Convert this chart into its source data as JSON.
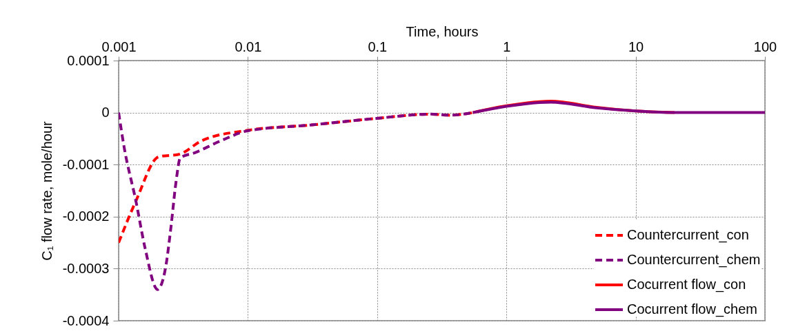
{
  "chart_data": {
    "type": "line",
    "xlabel": "Time, hours",
    "ylabel": "C₁ flow rate, mole/hour",
    "log": "x",
    "grid": true,
    "legend": "bottom right",
    "xlim": [
      0.001,
      100
    ],
    "xticks": [
      0.001,
      0.01,
      0.1,
      1,
      10,
      100
    ],
    "ylim": [
      -0.0004,
      0.0001
    ],
    "yticks": [
      0.0001,
      0,
      -0.0001,
      -0.0002,
      -0.0003,
      -0.0004
    ],
    "series": [
      {
        "name": "Countercurrent_con",
        "color": "#ff0000",
        "line_style": "dashed",
        "x": [
          0.001,
          0.00136,
          0.00204,
          0.00295,
          0.0044,
          0.01,
          0.0303,
          0.1,
          0.26,
          0.37,
          0.55
        ],
        "values": [
          -0.00025,
          -0.00017,
          -8.5e-05,
          -8e-05,
          -5.4e-05,
          -3.4e-05,
          -2.4e-05,
          -1.1e-05,
          -3e-06,
          -5e-06,
          0
        ]
      },
      {
        "name": "Countercurrent_chem",
        "color": "#800080",
        "line_style": "dashed",
        "x": [
          0.001,
          0.0011,
          0.00136,
          0.0016,
          0.002,
          0.0023,
          0.00254,
          0.00277,
          0.003,
          0.0039,
          0.0062,
          0.01,
          0.0303,
          0.1,
          0.26,
          0.37,
          0.55
        ],
        "values": [
          0,
          -6.5e-05,
          -0.00017,
          -0.00026,
          -0.00034,
          -0.0003,
          -0.00022,
          -0.000136,
          -8.7e-05,
          -7.7e-05,
          -5.4e-05,
          -3.5e-05,
          -2.4e-05,
          -1.1e-05,
          -3e-06,
          -5e-06,
          0
        ]
      },
      {
        "name": "Cocurrent flow_con",
        "color": "#ff0000",
        "line_style": "solid",
        "x": [
          0.55,
          1,
          2.2,
          5,
          10,
          20
        ],
        "values": [
          0,
          1.3e-05,
          2.2e-05,
          1e-05,
          3e-06,
          0
        ]
      },
      {
        "name": "Cocurrent flow_chem",
        "color": "#800080",
        "line_style": "solid",
        "x": [
          0.55,
          1,
          2.2,
          5,
          10,
          20,
          50,
          100
        ],
        "values": [
          0,
          1.2e-05,
          2e-05,
          9e-06,
          3e-06,
          0,
          0,
          0
        ]
      }
    ]
  }
}
